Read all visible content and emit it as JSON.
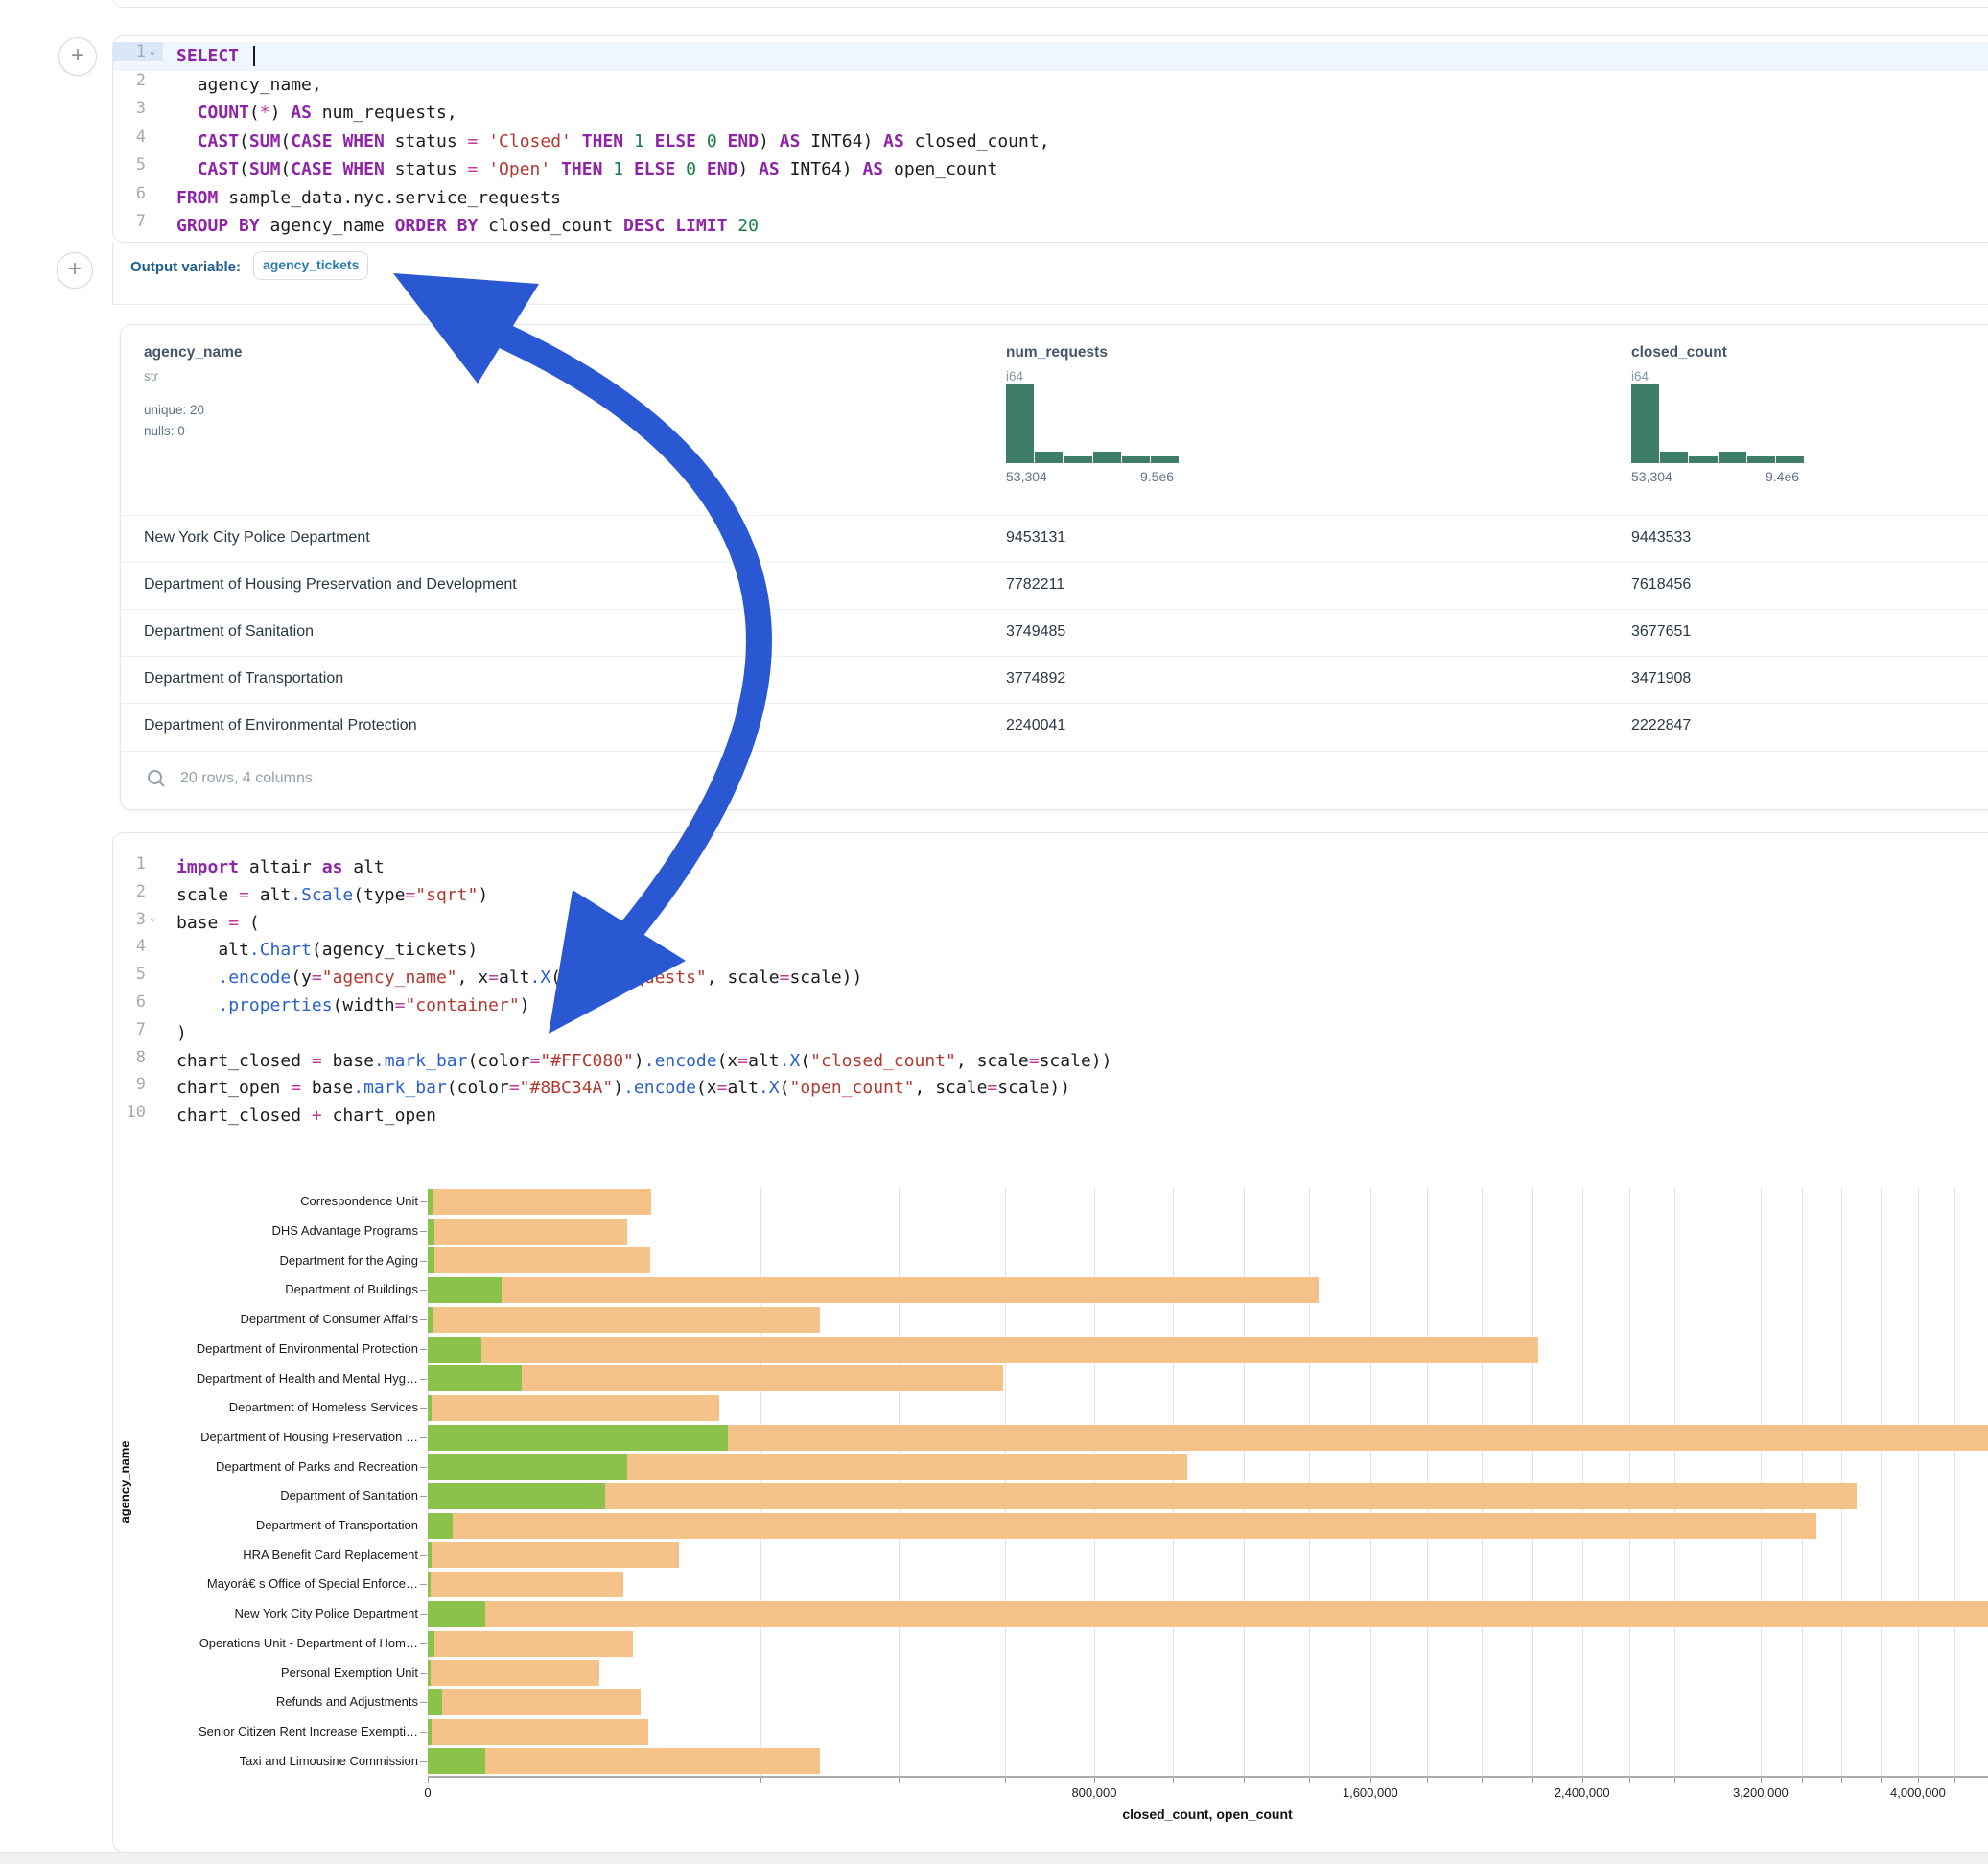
{
  "colors": {
    "arrow": "#2a58d2",
    "hist_bar": "#3e7d69",
    "bar_closed": "#f5c289",
    "bar_open": "#8bc34a",
    "keyword": "#8e24a8",
    "string": "#b03a30"
  },
  "sql_cell": {
    "fold_lines": [
      1
    ],
    "caret_line": 1,
    "highlight_line": 1,
    "lines": [
      [
        [
          "k",
          "SELECT"
        ],
        [
          "t",
          " "
        ]
      ],
      [
        [
          "t",
          "  agency_name,"
        ]
      ],
      [
        [
          "t",
          "  "
        ],
        [
          "k",
          "COUNT"
        ],
        [
          "t",
          "("
        ],
        [
          "o",
          "*"
        ],
        [
          "t",
          ") "
        ],
        [
          "k",
          "AS"
        ],
        [
          "t",
          " num_requests,"
        ]
      ],
      [
        [
          "t",
          "  "
        ],
        [
          "k",
          "CAST"
        ],
        [
          "t",
          "("
        ],
        [
          "k",
          "SUM"
        ],
        [
          "t",
          "("
        ],
        [
          "k",
          "CASE"
        ],
        [
          "t",
          " "
        ],
        [
          "k",
          "WHEN"
        ],
        [
          "t",
          " status "
        ],
        [
          "o",
          "="
        ],
        [
          "t",
          " "
        ],
        [
          "s",
          "'Closed'"
        ],
        [
          "t",
          " "
        ],
        [
          "k",
          "THEN"
        ],
        [
          "t",
          " "
        ],
        [
          "n",
          "1"
        ],
        [
          "t",
          " "
        ],
        [
          "k",
          "ELSE"
        ],
        [
          "t",
          " "
        ],
        [
          "n",
          "0"
        ],
        [
          "t",
          " "
        ],
        [
          "k",
          "END"
        ],
        [
          "t",
          ") "
        ],
        [
          "k",
          "AS"
        ],
        [
          "t",
          " INT64) "
        ],
        [
          "k",
          "AS"
        ],
        [
          "t",
          " closed_count,"
        ]
      ],
      [
        [
          "t",
          "  "
        ],
        [
          "k",
          "CAST"
        ],
        [
          "t",
          "("
        ],
        [
          "k",
          "SUM"
        ],
        [
          "t",
          "("
        ],
        [
          "k",
          "CASE"
        ],
        [
          "t",
          " "
        ],
        [
          "k",
          "WHEN"
        ],
        [
          "t",
          " status "
        ],
        [
          "o",
          "="
        ],
        [
          "t",
          " "
        ],
        [
          "s",
          "'Open'"
        ],
        [
          "t",
          " "
        ],
        [
          "k",
          "THEN"
        ],
        [
          "t",
          " "
        ],
        [
          "n",
          "1"
        ],
        [
          "t",
          " "
        ],
        [
          "k",
          "ELSE"
        ],
        [
          "t",
          " "
        ],
        [
          "n",
          "0"
        ],
        [
          "t",
          " "
        ],
        [
          "k",
          "END"
        ],
        [
          "t",
          ") "
        ],
        [
          "k",
          "AS"
        ],
        [
          "t",
          " INT64) "
        ],
        [
          "k",
          "AS"
        ],
        [
          "t",
          " open_count"
        ]
      ],
      [
        [
          "k",
          "FROM"
        ],
        [
          "t",
          " sample_data.nyc.service_requests"
        ]
      ],
      [
        [
          "k",
          "GROUP BY"
        ],
        [
          "t",
          " agency_name "
        ],
        [
          "k",
          "ORDER BY"
        ],
        [
          "t",
          " closed_count "
        ],
        [
          "k",
          "DESC"
        ],
        [
          "t",
          " "
        ],
        [
          "k",
          "LIMIT"
        ],
        [
          "t",
          " "
        ],
        [
          "n",
          "20"
        ]
      ]
    ]
  },
  "output_variable": {
    "label": "Output variable:",
    "value": "agency_tickets"
  },
  "table": {
    "columns": [
      {
        "name": "agency_name",
        "type": "str",
        "meta": [
          "unique: 20",
          "nulls: 0"
        ]
      },
      {
        "name": "num_requests",
        "type": "i64",
        "hist": {
          "bars": [
            1,
            0.15,
            0.09,
            0.15,
            0.09,
            0.09
          ],
          "min": "53,304",
          "max": "9.5e6"
        }
      },
      {
        "name": "closed_count",
        "type": "i64",
        "hist": {
          "bars": [
            1,
            0.15,
            0.09,
            0.15,
            0.09,
            0.09
          ],
          "min": "53,304",
          "max": "9.4e6"
        }
      }
    ],
    "rows": [
      [
        "New York City Police Department",
        "9453131",
        "9443533"
      ],
      [
        "Department of Housing Preservation and Development",
        "7782211",
        "7618456"
      ],
      [
        "Department of Sanitation",
        "3749485",
        "3677651"
      ],
      [
        "Department of Transportation",
        "3774892",
        "3471908"
      ],
      [
        "Department of Environmental Protection",
        "2240041",
        "2222847"
      ]
    ],
    "footer": "20 rows, 4 columns"
  },
  "python_cell": {
    "fold_lines": [
      3
    ],
    "lines": [
      [
        [
          "k",
          "import"
        ],
        [
          "t",
          " altair "
        ],
        [
          "k",
          "as"
        ],
        [
          "t",
          " alt"
        ]
      ],
      [
        [
          "t",
          "scale "
        ],
        [
          "o",
          "="
        ],
        [
          "t",
          " alt"
        ],
        [
          "f",
          ".Scale"
        ],
        [
          "t",
          "(type"
        ],
        [
          "o",
          "="
        ],
        [
          "s",
          "\"sqrt\""
        ],
        [
          "t",
          ")"
        ]
      ],
      [
        [
          "t",
          "base "
        ],
        [
          "o",
          "="
        ],
        [
          "t",
          " ("
        ]
      ],
      [
        [
          "t",
          "    alt"
        ],
        [
          "f",
          ".Chart"
        ],
        [
          "t",
          "(agency_tickets)"
        ]
      ],
      [
        [
          "t",
          "    "
        ],
        [
          "f",
          ".encode"
        ],
        [
          "t",
          "(y"
        ],
        [
          "o",
          "="
        ],
        [
          "s",
          "\"agency_name\""
        ],
        [
          "t",
          ", x"
        ],
        [
          "o",
          "="
        ],
        [
          "t",
          "alt"
        ],
        [
          "f",
          ".X"
        ],
        [
          "t",
          "("
        ],
        [
          "s",
          "\"num_requests\""
        ],
        [
          "t",
          ", scale"
        ],
        [
          "o",
          "="
        ],
        [
          "t",
          "scale))"
        ]
      ],
      [
        [
          "t",
          "    "
        ],
        [
          "f",
          ".properties"
        ],
        [
          "t",
          "(width"
        ],
        [
          "o",
          "="
        ],
        [
          "s",
          "\"container\""
        ],
        [
          "t",
          ")"
        ]
      ],
      [
        [
          "t",
          ")"
        ]
      ],
      [
        [
          "t",
          "chart_closed "
        ],
        [
          "o",
          "="
        ],
        [
          "t",
          " base"
        ],
        [
          "f",
          ".mark_bar"
        ],
        [
          "t",
          "(color"
        ],
        [
          "o",
          "="
        ],
        [
          "s",
          "\"#FFC080\""
        ],
        [
          "t",
          ")"
        ],
        [
          "f",
          ".encode"
        ],
        [
          "t",
          "(x"
        ],
        [
          "o",
          "="
        ],
        [
          "t",
          "alt"
        ],
        [
          "f",
          ".X"
        ],
        [
          "t",
          "("
        ],
        [
          "s",
          "\"closed_count\""
        ],
        [
          "t",
          ", scale"
        ],
        [
          "o",
          "="
        ],
        [
          "t",
          "scale))"
        ]
      ],
      [
        [
          "t",
          "chart_open "
        ],
        [
          "o",
          "="
        ],
        [
          "t",
          " base"
        ],
        [
          "f",
          ".mark_bar"
        ],
        [
          "t",
          "(color"
        ],
        [
          "o",
          "="
        ],
        [
          "s",
          "\"#8BC34A\""
        ],
        [
          "t",
          ")"
        ],
        [
          "f",
          ".encode"
        ],
        [
          "t",
          "(x"
        ],
        [
          "o",
          "="
        ],
        [
          "t",
          "alt"
        ],
        [
          "f",
          ".X"
        ],
        [
          "t",
          "("
        ],
        [
          "s",
          "\"open_count\""
        ],
        [
          "t",
          ", scale"
        ],
        [
          "o",
          "="
        ],
        [
          "t",
          "scale))"
        ]
      ],
      [
        [
          "t",
          "chart_closed "
        ],
        [
          "o",
          "+"
        ],
        [
          "t",
          " chart_open"
        ]
      ]
    ]
  },
  "chart_data": {
    "type": "bar",
    "orientation": "horizontal",
    "x_scale": "sqrt",
    "xlabel": "closed_count, open_count",
    "ylabel": "agency_name",
    "legend": "none",
    "grid": true,
    "x_edge_value": 4385000,
    "grid_step": 200000,
    "grid_max": 4200000,
    "x_ticks": [
      {
        "v": 0,
        "label": "0"
      },
      {
        "v": 800000,
        "label": "800,000"
      },
      {
        "v": 1600000,
        "label": "1,600,000"
      },
      {
        "v": 2400000,
        "label": "2,400,000"
      },
      {
        "v": 3200000,
        "label": "3,200,000"
      },
      {
        "v": 4000000,
        "label": "4,000,000"
      }
    ],
    "series": [
      {
        "name": "closed_count",
        "color": "#f5c289"
      },
      {
        "name": "open_count",
        "color": "#8bc34a"
      }
    ],
    "rows": [
      {
        "label": "Correspondence Unit",
        "closed": 90000,
        "open": 40
      },
      {
        "label": "DHS Advantage Programs",
        "closed": 72000,
        "open": 80
      },
      {
        "label": "Department for the Aging",
        "closed": 89000,
        "open": 80
      },
      {
        "label": "Department of Buildings",
        "closed": 1430000,
        "open": 9800
      },
      {
        "label": "Department of Consumer Affairs",
        "closed": 277000,
        "open": 60
      },
      {
        "label": "Department of Environmental Protection",
        "closed": 2222847,
        "open": 5200
      },
      {
        "label": "Department of Health and Mental Hyg…",
        "closed": 596000,
        "open": 16000
      },
      {
        "label": "Department of Homeless Services",
        "closed": 153000,
        "open": 30
      },
      {
        "label": "Department of Housing Preservation …",
        "closed": 7618456,
        "open": 162000
      },
      {
        "label": "Department of Parks and Recreation",
        "closed": 1040000,
        "open": 72000
      },
      {
        "label": "Department of Sanitation",
        "closed": 3677651,
        "open": 57000
      },
      {
        "label": "Department of Transportation",
        "closed": 3471908,
        "open": 1100
      },
      {
        "label": "HRA Benefit Card Replacement",
        "closed": 114000,
        "open": 25
      },
      {
        "label": "Mayorâ€ s Office of Special Enforce…",
        "closed": 69000,
        "open": 20
      },
      {
        "label": "New York City Police Department",
        "closed": 9443533,
        "open": 6000
      },
      {
        "label": "Operations Unit - Department of Hom…",
        "closed": 76000,
        "open": 90
      },
      {
        "label": "Personal Exemption Unit",
        "closed": 53304,
        "open": 15
      },
      {
        "label": "Refunds and Adjustments",
        "closed": 82000,
        "open": 350
      },
      {
        "label": "Senior Citizen Rent Increase Exempti…",
        "closed": 88000,
        "open": 25
      },
      {
        "label": "Taxi and Limousine Commission",
        "closed": 277000,
        "open": 6000
      }
    ]
  }
}
